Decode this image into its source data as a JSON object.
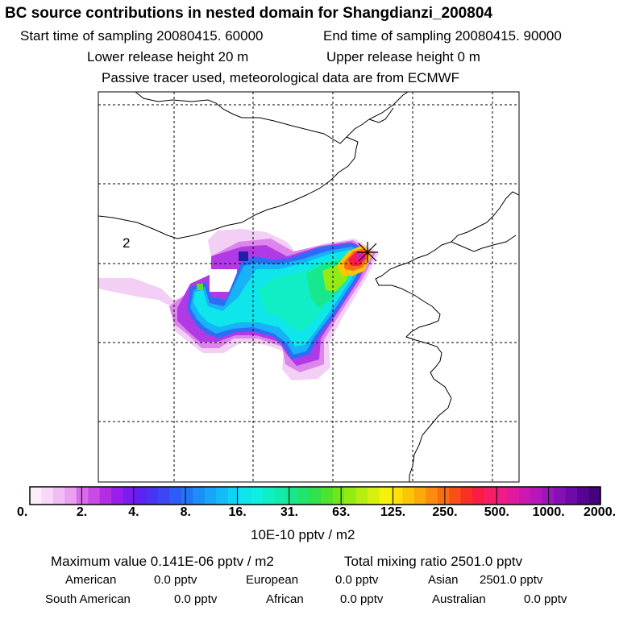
{
  "header": {
    "title": "BC  source contributions in nested domain for Shangdianzi_200804",
    "start": "Start time of sampling 20080415. 60000",
    "end": "End time of sampling 20080415. 90000",
    "lower": "Lower release height   20 m",
    "upper": "Upper release height    0 m",
    "tracer": "Passive tracer used, meteorological data are from ECMWF"
  },
  "map": {
    "region_label": "2",
    "station_marker": "asterisk-marker"
  },
  "colorbar": {
    "tick_labels": [
      "0.",
      "2.",
      "4.",
      "8.",
      "16.",
      "31.",
      "63.",
      "125.",
      "250.",
      "500.",
      "1000.",
      "2000."
    ],
    "colors": [
      "#fbeefb",
      "#f7d9f7",
      "#f1bcf3",
      "#eaa1ef",
      "#d96aea",
      "#c84be6",
      "#b32ee3",
      "#9a1eea",
      "#7a1ef0",
      "#5e22f2",
      "#4a33f5",
      "#3d46f5",
      "#2f5cf6",
      "#2474f6",
      "#1b8ef7",
      "#17a6f7",
      "#13bcf6",
      "#10d3f3",
      "#0ee6ec",
      "#0ef0df",
      "#10eec6",
      "#12ebab",
      "#17e88d",
      "#21e46c",
      "#32e04a",
      "#4de22c",
      "#6fe61c",
      "#93ea14",
      "#b5ee10",
      "#d5f10d",
      "#f4f20b",
      "#fde00a",
      "#fdc50a",
      "#fca90b",
      "#fb8c0d",
      "#fa6e12",
      "#f94f18",
      "#f93024",
      "#f81d44",
      "#f51e66",
      "#ef1c86",
      "#e01aa0",
      "#cc18b1",
      "#b616ba",
      "#9e14bd",
      "#860fb8",
      "#6d0aa8",
      "#560592",
      "#43037c"
    ],
    "unit": "10E-10 pptv / m2"
  },
  "summary": {
    "max_value": "Maximum value  0.141E-06 pptv / m2",
    "total": "Total mixing ratio     2501.0 pptv",
    "american_label": "American",
    "american_value": "0.0 pptv",
    "european_label": "European",
    "european_value": "0.0 pptv",
    "asian_label": "Asian",
    "asian_value": "2501.0 pptv",
    "south_american_label": "South American",
    "south_american_value": "0.0 pptv",
    "african_label": "African",
    "african_value": "0.0 pptv",
    "australian_label": "Australian",
    "australian_value": "0.0 pptv"
  }
}
